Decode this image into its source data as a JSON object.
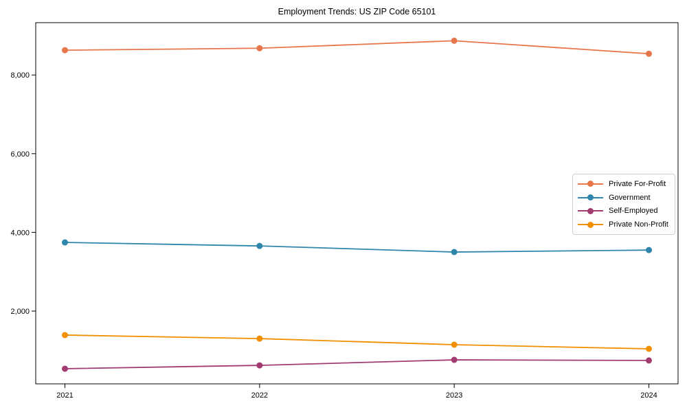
{
  "chart": {
    "title": "Employment Trends: US ZIP Code 65101"
  },
  "chart_data": {
    "type": "line",
    "title": "Employment Trends: US ZIP Code 65101",
    "xlabel": "",
    "ylabel": "",
    "x": [
      2021,
      2022,
      2023,
      2024
    ],
    "x_tick_labels": [
      "2021",
      "2022",
      "2023",
      "2024"
    ],
    "y_ticks": [
      2000,
      4000,
      6000,
      8000
    ],
    "y_tick_labels": [
      "2,000",
      "4,000",
      "6,000",
      "8,000"
    ],
    "xlim": [
      2020.85,
      2024.15
    ],
    "ylim": [
      150,
      9330
    ],
    "grid": false,
    "legend_position": "center-right",
    "marker": "circle",
    "series": [
      {
        "name": "Private For-Profit",
        "color": "#E8764B",
        "values": [
          8630,
          8680,
          8870,
          8540
        ]
      },
      {
        "name": "Government",
        "color": "#2E86AB",
        "values": [
          3745,
          3655,
          3500,
          3550
        ]
      },
      {
        "name": "Self-Employed",
        "color": "#A23B72",
        "values": [
          535,
          620,
          760,
          745
        ]
      },
      {
        "name": "Private Non-Profit",
        "color": "#F18F01",
        "values": [
          1390,
          1300,
          1145,
          1040
        ]
      }
    ]
  }
}
